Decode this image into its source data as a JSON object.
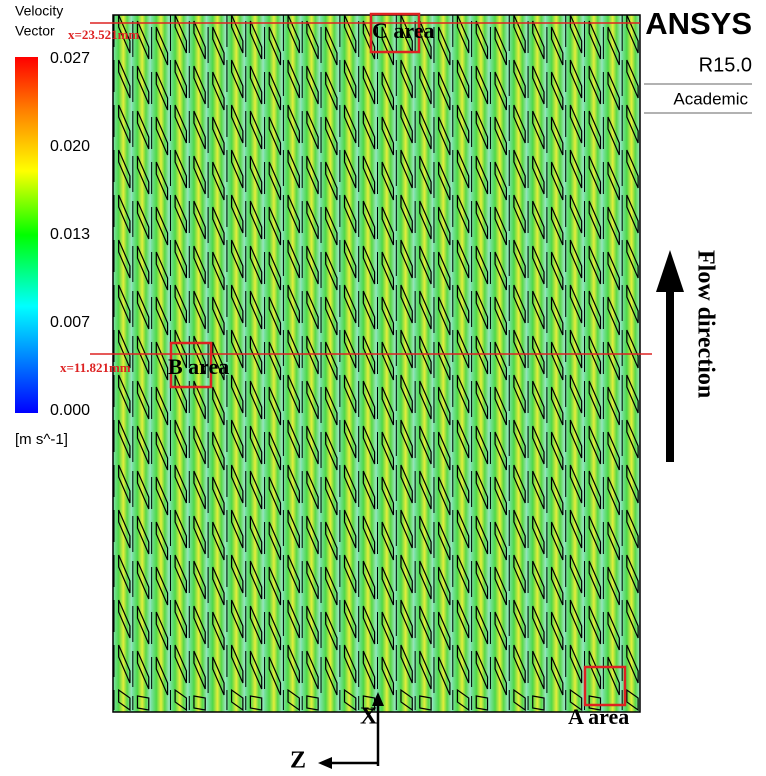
{
  "colorbar": {
    "title": [
      "Velocity",
      "Vector"
    ],
    "ticks": [
      "0.027",
      "0.020",
      "0.013",
      "0.007",
      "0.000"
    ],
    "unit": "[m s^-1]"
  },
  "sections": [
    {
      "position": "x=23.521mm",
      "label": "C area"
    },
    {
      "position": "x=11.821mm",
      "label": "B area"
    }
  ],
  "outlet_label": "A area",
  "branding": {
    "name": "ANSYS",
    "version": "R15.0",
    "edition": "Academic"
  },
  "flow_label": "Flow direction",
  "axes": {
    "x": "X",
    "z": "Z"
  }
}
